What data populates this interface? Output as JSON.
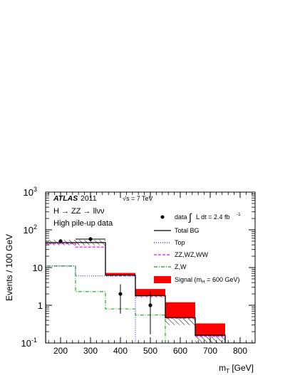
{
  "chart_data": {
    "type": "histogram",
    "experiment": "ATLAS",
    "year": "2011",
    "energy": "√s = 7 TeV",
    "process": "H → ZZ → llνν",
    "subtitle": "High pile-up data",
    "xlabel_main": "m",
    "xlabel_sub": "T",
    "xlabel_unit": " [GeV]",
    "ylabel": "Events / 100 GeV",
    "ylog": true,
    "xlim": [
      150,
      850
    ],
    "ylim": [
      0.1,
      1000
    ],
    "bin_edges": [
      150,
      250,
      350,
      450,
      550,
      650,
      750,
      850
    ],
    "x_ticks": [
      "200",
      "300",
      "400",
      "500",
      "600",
      "700",
      "800"
    ],
    "x_tick_values": [
      200,
      300,
      400,
      500,
      600,
      700,
      800
    ],
    "y_ticks": [
      {
        "value": 0.1,
        "base": "10",
        "exp": "-1"
      },
      {
        "value": 1,
        "base": "1",
        "exp": ""
      },
      {
        "value": 10,
        "base": "10",
        "exp": ""
      },
      {
        "value": 100,
        "base": "10",
        "exp": "2"
      },
      {
        "value": 1000,
        "base": "10",
        "exp": "3"
      }
    ],
    "series": [
      {
        "name": "Total BG",
        "style": "solid",
        "color": "#000000",
        "values": [
          46,
          46,
          6.3,
          1.8,
          0.47,
          0.16,
          0.07
        ]
      },
      {
        "name": "Top",
        "style": "dotted",
        "color": "#1f1fcc",
        "values": [
          11,
          6,
          6,
          0.09,
          0.07,
          0.07,
          0.07
        ]
      },
      {
        "name": "ZZ,WZ,WW",
        "style": "dashed",
        "color": "#ff00ff",
        "values": [
          43,
          35,
          6,
          1.75,
          0.45,
          0.15,
          0.07
        ]
      },
      {
        "name": "Z,W",
        "style": "dashdot",
        "color": "#00aa00",
        "values": [
          11,
          2.3,
          0.8,
          0.55,
          0.07,
          0.07,
          0.07
        ]
      }
    ],
    "bg_uncertainty": {
      "low": [
        39,
        39,
        5.8,
        1.6,
        0.3,
        0.1,
        0.07
      ],
      "high": [
        54,
        54,
        6.9,
        2.0,
        0.7,
        0.22,
        0.07
      ]
    },
    "signal": {
      "label_main": "Signal (m",
      "label_sub": "H",
      "label_tail": " = 600 GeV)",
      "color": "#ff0000",
      "stack_top": [
        46,
        46,
        7.2,
        2.7,
        1.2,
        0.33,
        0.07
      ]
    },
    "data": {
      "label": "data",
      "lumi": "L dt = 2.4 fb",
      "lumi_exp": "-1",
      "points": [
        {
          "x": 200,
          "y": 50,
          "err_low": 7,
          "err_high": 7,
          "xerr": 0
        },
        {
          "x": 300,
          "y": 57,
          "err_low": 7.5,
          "err_high": 7.5,
          "xerr": 50
        },
        {
          "x": 400,
          "y": 2,
          "err_low": 1.4,
          "err_high": 1.6,
          "xerr": 0
        },
        {
          "x": 500,
          "y": 1,
          "err_low": 0.83,
          "err_high": 1.3,
          "xerr": 0
        }
      ]
    },
    "legend_position": "right"
  }
}
